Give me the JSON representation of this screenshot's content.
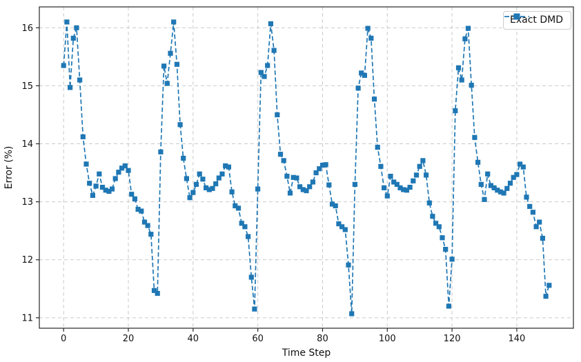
{
  "figure": {
    "background": "#ffffff"
  },
  "chart_data": {
    "type": "line",
    "title": "",
    "xlabel": "Time Step",
    "ylabel": "Error (%)",
    "x_ticks": [
      0,
      20,
      40,
      60,
      80,
      100,
      120,
      140
    ],
    "y_ticks": [
      11,
      12,
      13,
      14,
      15,
      16
    ],
    "xlim": [
      -7.5,
      157.5
    ],
    "ylim": [
      10.82,
      16.36
    ],
    "grid": true,
    "grid_color": "#c9c9c9",
    "spine_color": "#262626",
    "legend": {
      "position": "upper right",
      "entries": [
        {
          "label": "Exact DMD",
          "color": "#1f77b4",
          "linestyle": "dashed",
          "marker": "square"
        }
      ]
    },
    "series": [
      {
        "name": "Exact DMD",
        "color": "#1f77b4",
        "linestyle": "dashed",
        "marker": "square",
        "x_start": 0,
        "x_step": 1,
        "values": [
          15.35,
          16.1,
          14.97,
          15.82,
          16.0,
          15.1,
          14.12,
          13.65,
          13.32,
          13.11,
          13.27,
          13.48,
          13.25,
          13.2,
          13.18,
          13.22,
          13.4,
          13.51,
          13.58,
          13.62,
          13.54,
          13.13,
          13.05,
          12.87,
          12.84,
          12.65,
          12.59,
          12.44,
          11.47,
          11.42,
          13.86,
          15.34,
          15.04,
          15.56,
          16.1,
          15.37,
          14.33,
          13.75,
          13.4,
          13.07,
          13.16,
          13.3,
          13.48,
          13.39,
          13.24,
          13.21,
          13.23,
          13.31,
          13.41,
          13.48,
          13.62,
          13.6,
          13.17,
          12.93,
          12.89,
          12.63,
          12.57,
          12.4,
          11.7,
          11.15,
          13.22,
          15.23,
          15.16,
          15.35,
          16.07,
          15.61,
          14.5,
          13.82,
          13.71,
          13.44,
          13.15,
          13.42,
          13.41,
          13.26,
          13.21,
          13.19,
          13.26,
          13.34,
          13.5,
          13.57,
          13.63,
          13.64,
          13.29,
          12.96,
          12.93,
          12.62,
          12.57,
          12.52,
          11.91,
          11.07,
          13.3,
          14.96,
          15.22,
          15.18,
          15.99,
          15.82,
          14.77,
          13.94,
          13.61,
          13.24,
          13.1,
          13.44,
          13.34,
          13.3,
          13.24,
          13.21,
          13.2,
          13.25,
          13.36,
          13.46,
          13.61,
          13.71,
          13.46,
          12.98,
          12.75,
          12.63,
          12.57,
          12.38,
          12.18,
          11.2,
          12.01,
          14.57,
          15.31,
          15.1,
          15.81,
          15.99,
          15.01,
          14.11,
          13.68,
          13.3,
          13.04,
          13.48,
          13.28,
          13.24,
          13.2,
          13.17,
          13.15,
          13.23,
          13.32,
          13.42,
          13.47,
          13.65,
          13.6,
          13.08,
          12.92,
          12.82,
          12.57,
          12.65,
          12.37,
          11.37,
          11.56
        ]
      }
    ]
  }
}
